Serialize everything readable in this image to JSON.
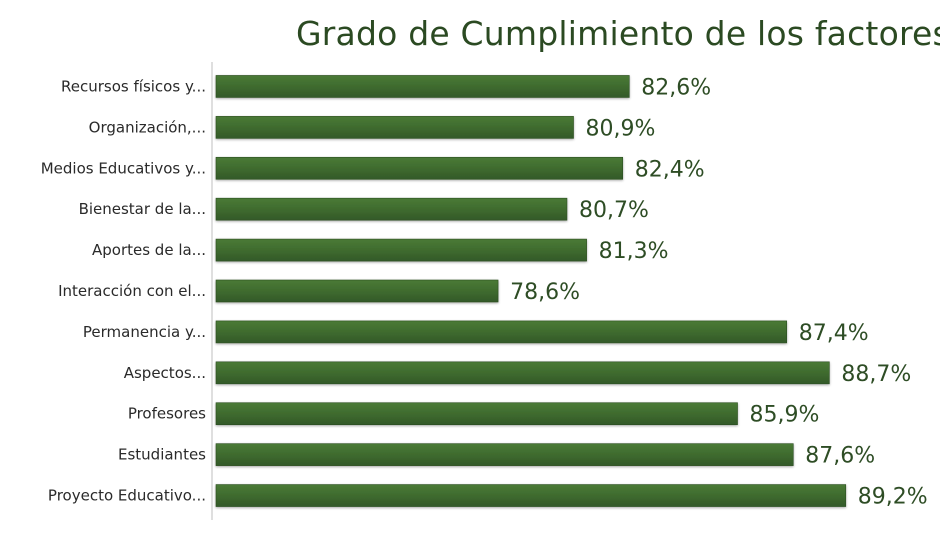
{
  "chart_data": {
    "type": "bar",
    "orientation": "horizontal",
    "title": "Grado de Cumplimiento de los factores",
    "xlabel": "",
    "ylabel": "",
    "xlim": [
      70,
      90
    ],
    "grid": false,
    "legend": "none",
    "colors": {
      "bar": "#3f6b2e",
      "bar_edge": "#2c4f20",
      "value_text": "#2e4d25",
      "title_text": "#2b4a22",
      "axis_line": "#bfbfbf"
    },
    "categories": [
      "Recursos físicos y...",
      "Organización,...",
      "Medios Educativos y...",
      "Bienestar de la...",
      "Aportes de la...",
      "Interacción con el...",
      "Permanencia y...",
      "Aspectos...",
      "Profesores",
      "Estudiantes",
      "Proyecto Educativo..."
    ],
    "values": [
      82.6,
      80.9,
      82.4,
      80.7,
      81.3,
      78.6,
      87.4,
      88.7,
      85.9,
      87.6,
      89.2
    ],
    "value_labels": [
      "82,6%",
      "80,9%",
      "82,4%",
      "80,7%",
      "81,3%",
      "78,6%",
      "87,4%",
      "88,7%",
      "85,9%",
      "87,6%",
      "89,2%"
    ]
  }
}
